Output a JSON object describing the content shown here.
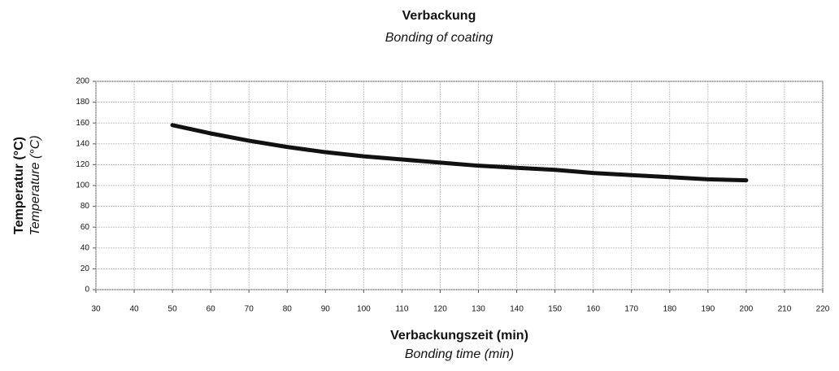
{
  "chart_data": {
    "type": "line",
    "title": "Verbackung",
    "subtitle": "Bonding of coating",
    "ylabel": [
      "Temperatur (°C)",
      "Temperature (°C)"
    ],
    "xlabel": [
      "Verbackungszeit (min)",
      "Bonding time (min)"
    ],
    "x": [
      50,
      60,
      70,
      80,
      90,
      100,
      110,
      120,
      130,
      140,
      150,
      160,
      170,
      180,
      190,
      200
    ],
    "values": [
      158,
      150,
      143,
      137,
      132,
      128,
      125,
      122,
      119,
      117,
      115,
      112,
      110,
      108,
      106,
      105
    ],
    "color": "#111111",
    "xlim": [
      30,
      220
    ],
    "xticks": [
      30,
      40,
      50,
      60,
      70,
      80,
      90,
      100,
      110,
      120,
      130,
      140,
      150,
      160,
      170,
      180,
      190,
      200,
      210,
      220
    ],
    "ylim": [
      0,
      200
    ],
    "yticks": [
      0,
      20,
      40,
      60,
      80,
      100,
      120,
      140,
      160,
      180,
      200
    ],
    "grid": true
  }
}
